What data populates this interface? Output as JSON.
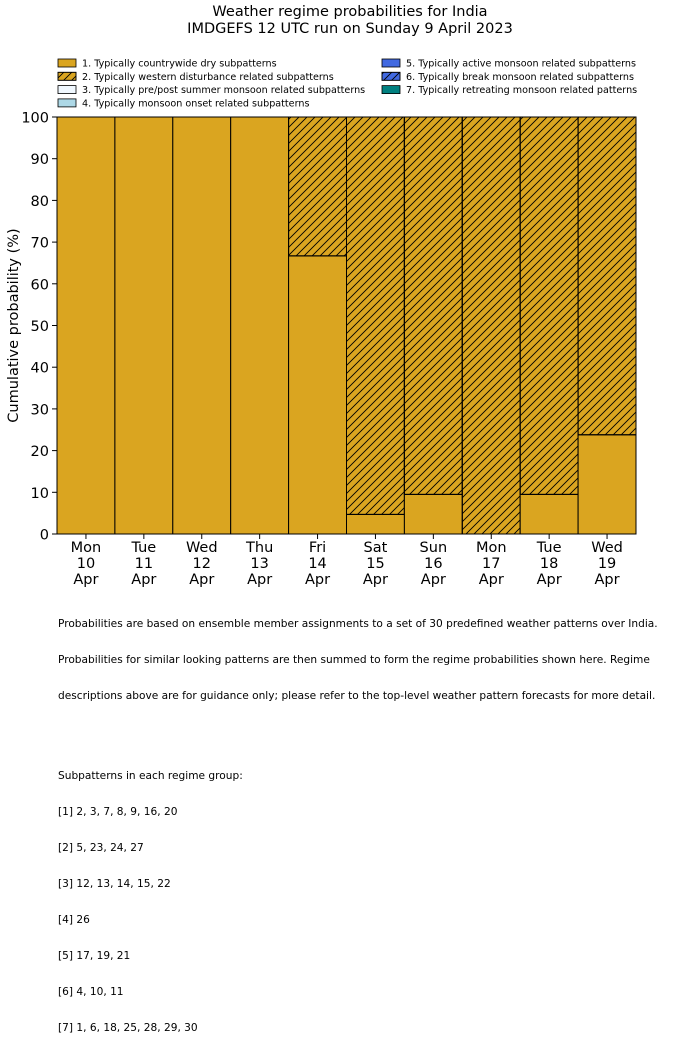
{
  "chart_data": {
    "type": "bar",
    "title": "Weather regime probabilities for India",
    "subtitle": "IMDGEFS 12 UTC run on Sunday 9 April 2023",
    "ylabel": "Cumulative probability (%)",
    "ylim": [
      0,
      100
    ],
    "yticks": [
      "0",
      "10",
      "20",
      "30",
      "40",
      "50",
      "60",
      "70",
      "80",
      "90",
      "100"
    ],
    "categories": [
      [
        "Mon",
        "10",
        "Apr"
      ],
      [
        "Tue",
        "11",
        "Apr"
      ],
      [
        "Wed",
        "12",
        "Apr"
      ],
      [
        "Thu",
        "13",
        "Apr"
      ],
      [
        "Fri",
        "14",
        "Apr"
      ],
      [
        "Sat",
        "15",
        "Apr"
      ],
      [
        "Sun",
        "16",
        "Apr"
      ],
      [
        "Mon",
        "17",
        "Apr"
      ],
      [
        "Tue",
        "18",
        "Apr"
      ],
      [
        "Wed",
        "19",
        "Apr"
      ]
    ],
    "series": [
      {
        "name": "1. Typically countrywide dry subpatterns",
        "color": "#daa520",
        "hatch": false,
        "values": [
          100,
          100,
          100,
          100,
          66.7,
          4.7,
          9.5,
          0,
          9.5,
          23.8
        ]
      },
      {
        "name": "2. Typically western disturbance related subpatterns",
        "color": "#daa520",
        "hatch": true,
        "values": [
          0,
          0,
          0,
          0,
          33.3,
          95.3,
          90.5,
          100,
          90.5,
          76.2
        ]
      },
      {
        "name": "3. Typically pre/post summer monsoon related subpatterns",
        "color": "#f0f8ff",
        "hatch": false,
        "values": [
          0,
          0,
          0,
          0,
          0,
          0,
          0,
          0,
          0,
          0
        ]
      },
      {
        "name": "4. Typically monsoon onset related subpatterns",
        "color": "#add8e6",
        "hatch": false,
        "values": [
          0,
          0,
          0,
          0,
          0,
          0,
          0,
          0,
          0,
          0
        ]
      },
      {
        "name": "5. Typically active monsoon related subpatterns",
        "color": "#4169e1",
        "hatch": false,
        "values": [
          0,
          0,
          0,
          0,
          0,
          0,
          0,
          0,
          0,
          0
        ]
      },
      {
        "name": "6. Typically break monsoon related subpatterns",
        "color": "#4169e1",
        "hatch": true,
        "values": [
          0,
          0,
          0,
          0,
          0,
          0,
          0,
          0,
          0,
          0
        ]
      },
      {
        "name": "7. Typically retreating monsoon related patterns",
        "color": "#008080",
        "hatch": false,
        "values": [
          0,
          0,
          0,
          0,
          0,
          0,
          0,
          0,
          0,
          0
        ]
      }
    ],
    "legend_position": "top"
  },
  "notes": {
    "lines": [
      "Probabilities are based on ensemble member assignments to a set of 30 predefined weather patterns over India.",
      "Probabilities for similar looking patterns are then summed to form the regime probabilities shown here. Regime",
      "descriptions above are for guidance only; please refer to the top-level weather pattern forecasts for more detail."
    ],
    "subpatterns_heading": "Subpatterns in each regime group:",
    "subpatterns": [
      "[1] 2, 3, 7, 8, 9, 16, 20",
      "[2] 5, 23, 24, 27",
      "[3] 12, 13, 14, 15, 22",
      "[4] 26",
      "[5] 17, 19, 21",
      "[6] 4, 10, 11",
      "[7] 1, 6, 18, 25, 28, 29, 30"
    ]
  }
}
